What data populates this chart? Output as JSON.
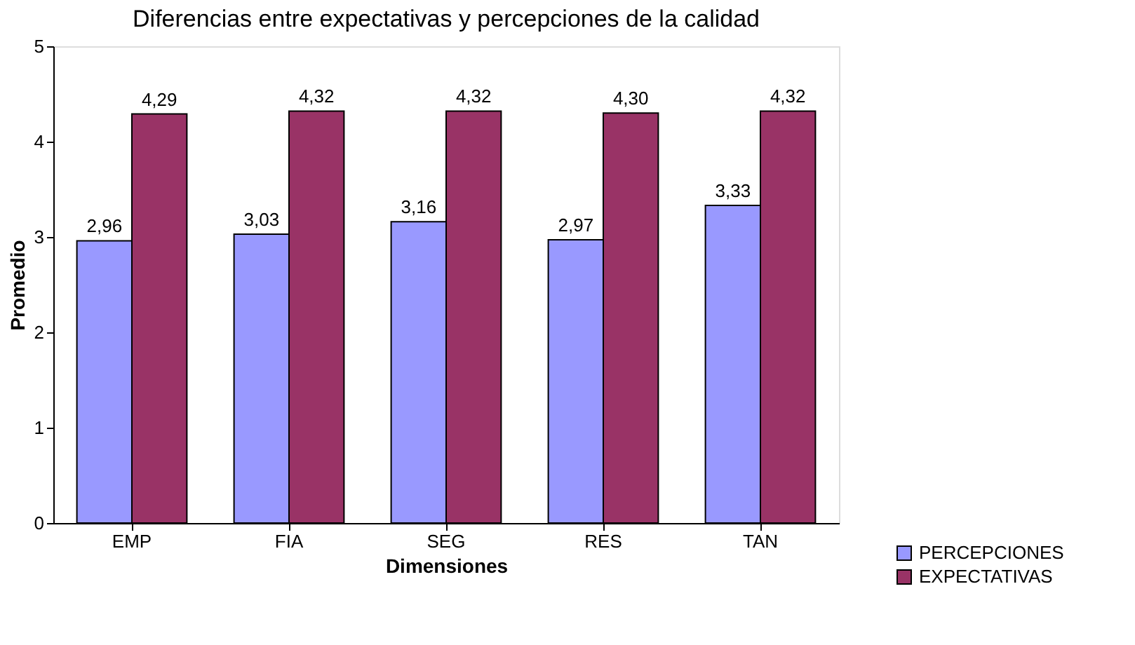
{
  "chart_data": {
    "type": "bar",
    "title": "Diferencias entre expectativas y percepciones de la calidad",
    "xlabel": "Dimensiones",
    "ylabel": "Promedio",
    "categories": [
      "EMP",
      "FIA",
      "SEG",
      "RES",
      "TAN"
    ],
    "series": [
      {
        "name": "PERCEPCIONES",
        "color": "#9999ff",
        "values": [
          2.96,
          3.03,
          3.16,
          2.97,
          3.33
        ],
        "value_labels": [
          "2,96",
          "3,03",
          "3,16",
          "2,97",
          "3,33"
        ]
      },
      {
        "name": "EXPECTATIVAS",
        "color": "#993366",
        "values": [
          4.29,
          4.32,
          4.32,
          4.3,
          4.32
        ],
        "value_labels": [
          "4,29",
          "4,32",
          "4,32",
          "4,30",
          "4,32"
        ]
      }
    ],
    "ylim": [
      0,
      5
    ],
    "yticks": [
      0,
      1,
      2,
      3,
      4,
      5
    ],
    "grid": false,
    "legend": "bottom right"
  }
}
